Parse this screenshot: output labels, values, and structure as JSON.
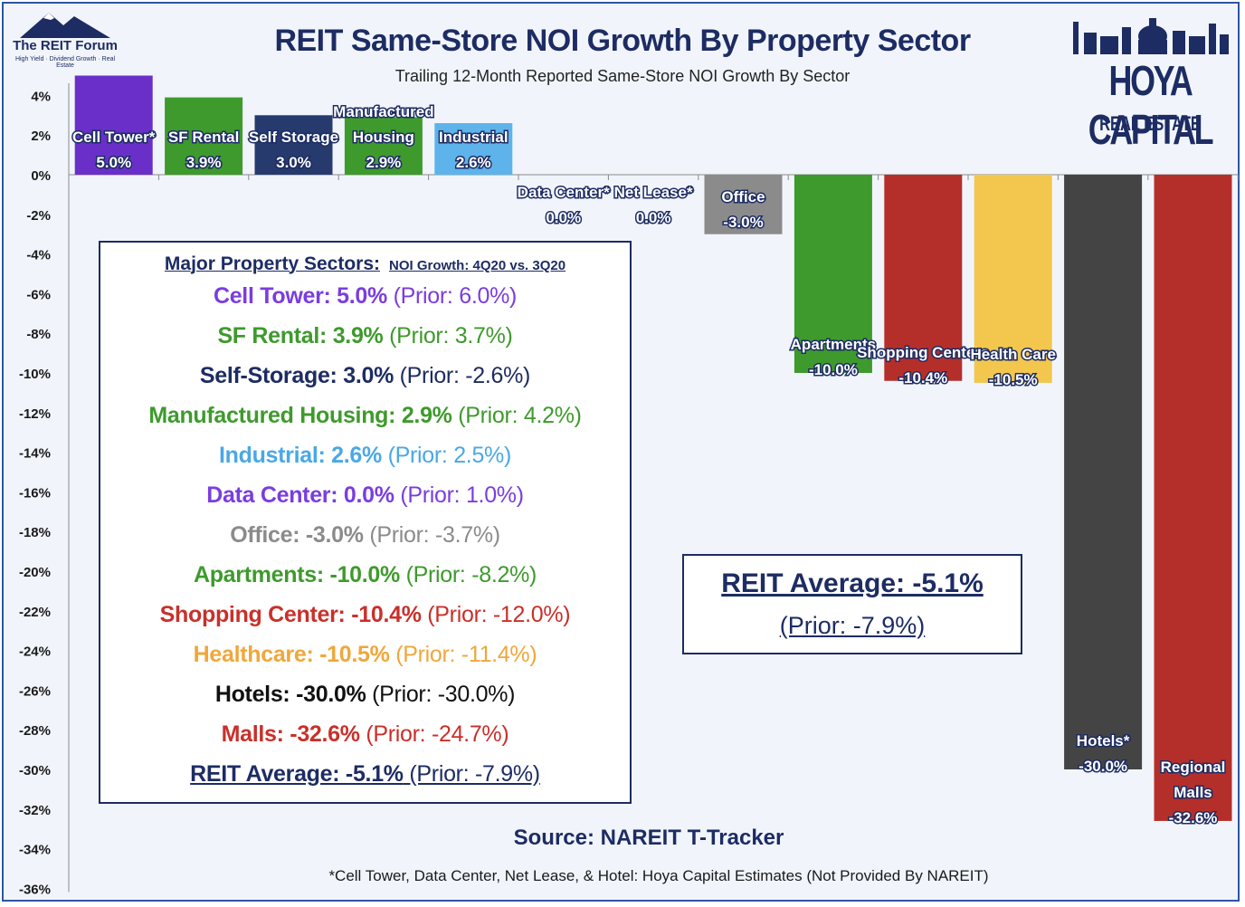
{
  "header": {
    "title": "REIT Same-Store NOI Growth By Property Sector",
    "subtitle": "Trailing 12-Month Reported Same-Store NOI Growth By Sector"
  },
  "branding": {
    "left_name": "The REIT Forum",
    "left_tagline": "High Yield · Dividend Growth · Real Estate",
    "right_name": "HOYA CAPITAL",
    "right_sub": "REAL ESTATE"
  },
  "chart_data": {
    "type": "bar",
    "ylim": [
      -36,
      5
    ],
    "yticks": [
      "4%",
      "2%",
      "0%",
      "-2%",
      "-4%",
      "-6%",
      "-8%",
      "-10%",
      "-12%",
      "-14%",
      "-16%",
      "-18%",
      "-20%",
      "-22%",
      "-24%",
      "-26%",
      "-28%",
      "-30%",
      "-32%",
      "-34%",
      "-36%"
    ],
    "ytick_values": [
      4,
      2,
      0,
      -2,
      -4,
      -6,
      -8,
      -10,
      -12,
      -14,
      -16,
      -18,
      -20,
      -22,
      -24,
      -26,
      -28,
      -30,
      -32,
      -34,
      -36
    ],
    "grid": false,
    "bars": [
      {
        "label": [
          "Cell Tower*"
        ],
        "value_text": "5.0%",
        "value": 5.0,
        "color": "#6a2fc9"
      },
      {
        "label": [
          "SF Rental"
        ],
        "value_text": "3.9%",
        "value": 3.9,
        "color": "#3e9a2c"
      },
      {
        "label": [
          "Self Storage"
        ],
        "value_text": "3.0%",
        "value": 3.0,
        "color": "#263a6e"
      },
      {
        "label": [
          "Manufactured",
          "Housing"
        ],
        "value_text": "2.9%",
        "value": 2.9,
        "color": "#3e9a2c"
      },
      {
        "label": [
          "Industrial"
        ],
        "value_text": "2.6%",
        "value": 2.6,
        "color": "#5db3ea"
      },
      {
        "label": [
          "Data Center*"
        ],
        "value_text": "0.0%",
        "value": 0.0,
        "color": "#6a2fc9"
      },
      {
        "label": [
          "Net Lease*"
        ],
        "value_text": "0.0%",
        "value": 0.0,
        "color": "#263a6e"
      },
      {
        "label": [
          "Office"
        ],
        "value_text": "-3.0%",
        "value": -3.0,
        "color": "#8b8b8b"
      },
      {
        "label": [
          "Apartments"
        ],
        "value_text": "-10.0%",
        "value": -10.0,
        "color": "#3e9a2c"
      },
      {
        "label": [
          "Shopping Centers"
        ],
        "value_text": "-10.4%",
        "value": -10.4,
        "color": "#b52f2a"
      },
      {
        "label": [
          "Health Care"
        ],
        "value_text": "-10.5%",
        "value": -10.5,
        "color": "#f3c64d"
      },
      {
        "label": [
          "Hotels*"
        ],
        "value_text": "-30.0%",
        "value": -30.0,
        "color": "#444444"
      },
      {
        "label": [
          "Regional",
          "Malls"
        ],
        "value_text": "-32.6%",
        "value": -32.6,
        "color": "#b52f2a"
      }
    ]
  },
  "sectors_panel": {
    "header_main": "Major Property Sectors:",
    "header_sub": "NOI Growth: 4Q20 vs. 3Q20",
    "rows": [
      {
        "name": "Cell Tower: 5.0%",
        "prior": "(Prior: 6.0%)",
        "color": "#7a3de0"
      },
      {
        "name": "SF Rental: 3.9%",
        "prior": "(Prior: 3.7%)",
        "color": "#3e9a2c"
      },
      {
        "name": "Self-Storage: 3.0%",
        "prior": "(Prior: -2.6%)",
        "color": "#1d2c63"
      },
      {
        "name": "Manufactured Housing: 2.9%",
        "prior": "(Prior: 4.2%)",
        "color": "#3e9a2c"
      },
      {
        "name": "Industrial: 2.6%",
        "prior": "(Prior: 2.5%)",
        "color": "#4aa8e6"
      },
      {
        "name": "Data Center: 0.0%",
        "prior": "(Prior: 1.0%)",
        "color": "#7a3de0"
      },
      {
        "name": "Office: -3.0%",
        "prior": "(Prior: -3.7%)",
        "color": "#8b8b8b"
      },
      {
        "name": "Apartments: -10.0%",
        "prior": "(Prior: -8.2%)",
        "color": "#3e9a2c"
      },
      {
        "name": "Shopping Center: -10.4%",
        "prior": "(Prior: -12.0%)",
        "color": "#c9302a"
      },
      {
        "name": "Healthcare: -10.5%",
        "prior": "(Prior: -11.4%)",
        "color": "#f0a73a"
      },
      {
        "name": "Hotels: -30.0%",
        "prior": "(Prior: -30.0%)",
        "color": "#111111"
      },
      {
        "name": "Malls: -32.6%",
        "prior": "(Prior: -24.7%)",
        "color": "#c9302a"
      },
      {
        "name": "REIT Average: -5.1%",
        "prior": "(Prior: -7.9%)",
        "color": "#1d2c63"
      }
    ]
  },
  "average_box": {
    "line1": "REIT Average: -5.1%",
    "line2": "(Prior: -7.9%)"
  },
  "source": "Source: NAREIT T-Tracker",
  "footnote": "*Cell Tower, Data Center, Net Lease, & Hotel: Hoya Capital Estimates (Not Provided By NAREIT)"
}
